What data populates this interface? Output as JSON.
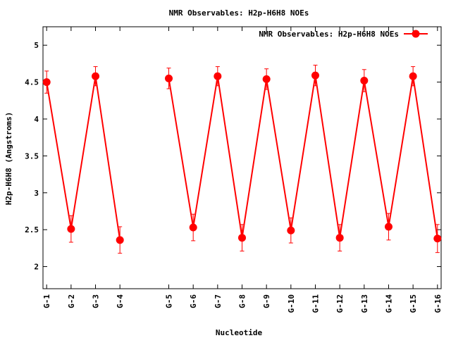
{
  "chart_data": {
    "type": "line",
    "title": "NMR Observables: H2p-H6H8 NOEs",
    "xlabel": "Nucleotide",
    "ylabel": "H2p-H6H8 (Angstroms)",
    "ylim": [
      1.7,
      5.25
    ],
    "yticks": [
      2,
      2.5,
      3,
      3.5,
      4,
      4.5,
      5
    ],
    "xlim": [
      0.85,
      17.15
    ],
    "legend": {
      "position": "top-right",
      "label": "NMR Observables: H2p-H6H8 NOEs"
    },
    "color": "#ff0000",
    "grid": false,
    "segments": [
      [
        {
          "x": 1,
          "label": "G-1",
          "y": 4.5,
          "err": 0.15
        },
        {
          "x": 2,
          "label": "G-2",
          "y": 2.51,
          "err": 0.18
        },
        {
          "x": 3,
          "label": "G-3",
          "y": 4.58,
          "err": 0.13
        },
        {
          "x": 4,
          "label": "G-4",
          "y": 2.36,
          "err": 0.18
        }
      ],
      [
        {
          "x": 6,
          "label": "G-5",
          "y": 4.55,
          "err": 0.14
        },
        {
          "x": 7,
          "label": "G-6",
          "y": 2.53,
          "err": 0.18
        },
        {
          "x": 8,
          "label": "G-7",
          "y": 4.58,
          "err": 0.13
        },
        {
          "x": 9,
          "label": "G-8",
          "y": 2.39,
          "err": 0.18
        },
        {
          "x": 10,
          "label": "G-9",
          "y": 4.54,
          "err": 0.14
        },
        {
          "x": 11,
          "label": "G-10",
          "y": 2.49,
          "err": 0.17
        },
        {
          "x": 12,
          "label": "G-11",
          "y": 4.59,
          "err": 0.14
        },
        {
          "x": 13,
          "label": "G-12",
          "y": 2.39,
          "err": 0.18
        },
        {
          "x": 14,
          "label": "G-13",
          "y": 4.52,
          "err": 0.15
        },
        {
          "x": 15,
          "label": "G-14",
          "y": 2.54,
          "err": 0.18
        },
        {
          "x": 16,
          "label": "G-15",
          "y": 4.58,
          "err": 0.13
        },
        {
          "x": 17,
          "label": "G-16",
          "y": 2.38,
          "err": 0.19
        }
      ]
    ]
  }
}
